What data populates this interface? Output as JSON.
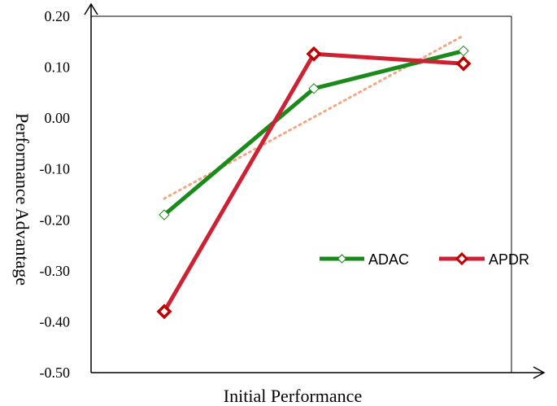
{
  "chart_data": {
    "type": "line",
    "xlabel": "Initial Performance",
    "ylabel": "Performance Advantage",
    "ylim": [
      -0.5,
      0.2
    ],
    "yticks": [
      "0.20",
      "0.10",
      "0.00",
      "-0.10",
      "-0.20",
      "-0.30",
      "-0.40",
      "-0.50"
    ],
    "ytick_values": [
      0.2,
      0.1,
      0.0,
      -0.1,
      -0.2,
      -0.3,
      -0.4,
      -0.5
    ],
    "x_points": 3,
    "series": [
      {
        "name": "ADAC",
        "values": [
          -0.19,
          0.058,
          0.132
        ],
        "color": "#1a8a1a",
        "marker": "open-diamond"
      },
      {
        "name": "APDR",
        "values": [
          -0.38,
          0.126,
          0.107
        ],
        "color": "#cc2233",
        "marker": "diamond",
        "marker_color": "#c00000"
      }
    ],
    "trendline": {
      "style": "dotted",
      "color": "#f4a582",
      "values": [
        -0.158,
        0.002,
        0.162
      ]
    },
    "legend_position": "right-middle",
    "grid": false
  }
}
